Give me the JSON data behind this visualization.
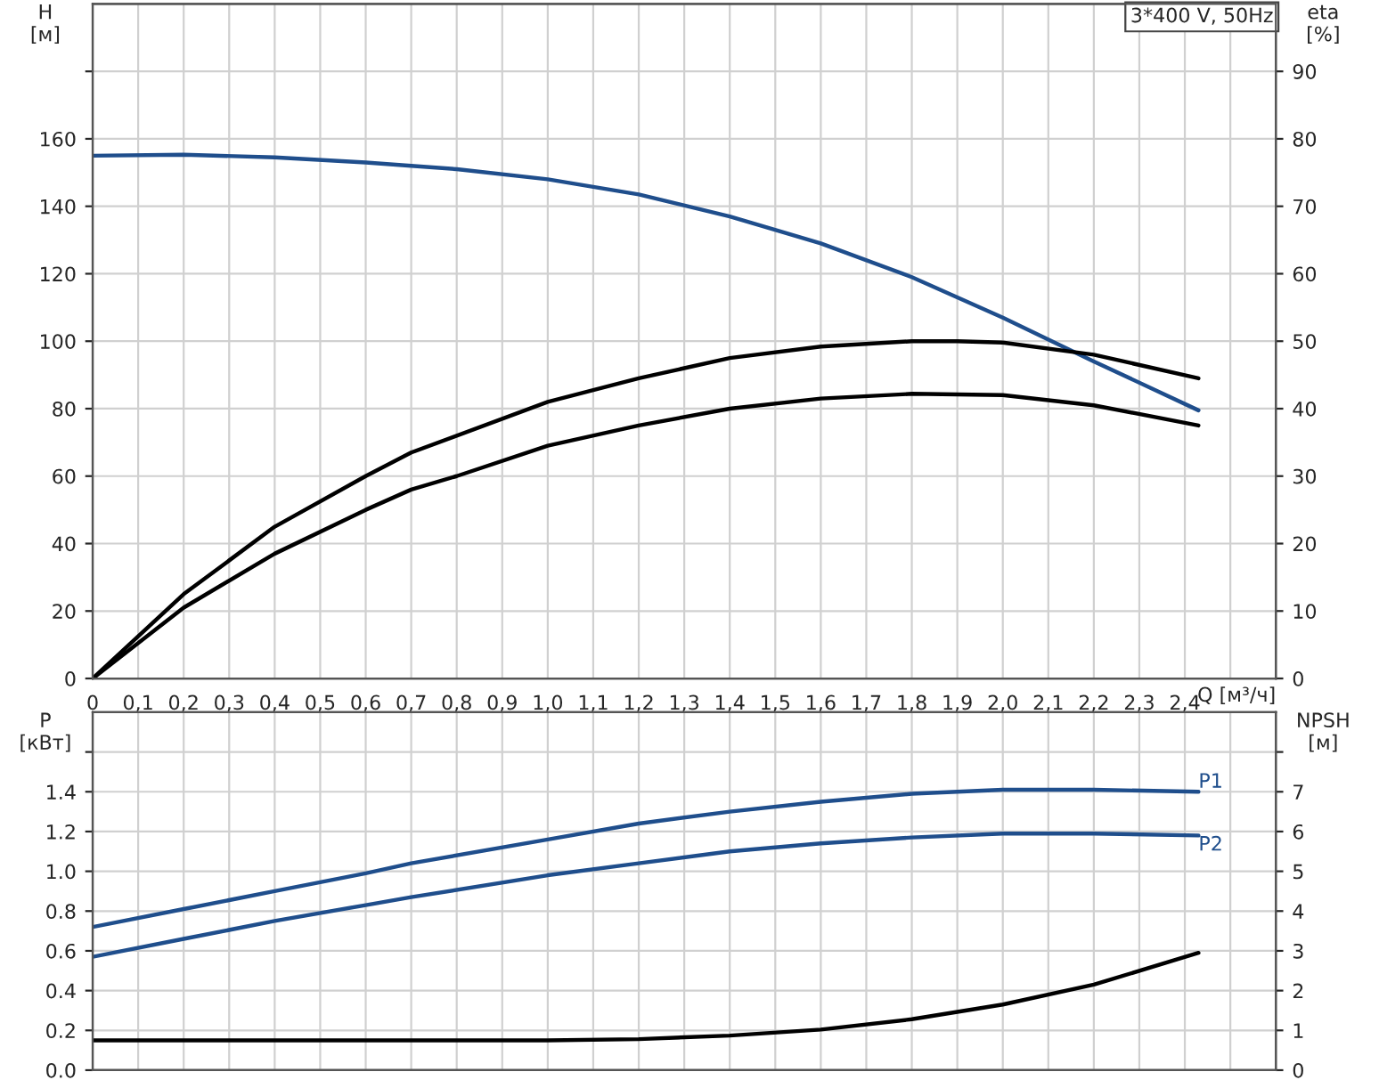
{
  "chart_data": [
    {
      "type": "line",
      "title": "3*400 V, 50Hz",
      "xlabel": "Q [м³/ч]",
      "ylabel": "H\n[м]",
      "y2label": "eta\n[%]",
      "legend": false,
      "grid": true,
      "marker": "none",
      "line_style": "solid",
      "xlim": [
        0,
        2.6
      ],
      "xticks": [
        {
          "value": 0,
          "label": "0"
        },
        {
          "value": 0.1,
          "label": "0,1"
        },
        {
          "value": 0.2,
          "label": "0,2"
        },
        {
          "value": 0.3,
          "label": "0,3"
        },
        {
          "value": 0.4,
          "label": "0,4"
        },
        {
          "value": 0.5,
          "label": "0,5"
        },
        {
          "value": 0.6,
          "label": "0,6"
        },
        {
          "value": 0.7,
          "label": "0,7"
        },
        {
          "value": 0.8,
          "label": "0,8"
        },
        {
          "value": 0.9,
          "label": "0,9"
        },
        {
          "value": 1.0,
          "label": "1,0"
        },
        {
          "value": 1.1,
          "label": "1,1"
        },
        {
          "value": 1.2,
          "label": "1,2"
        },
        {
          "value": 1.3,
          "label": "1,3"
        },
        {
          "value": 1.4,
          "label": "1,4"
        },
        {
          "value": 1.5,
          "label": "1,5"
        },
        {
          "value": 1.6,
          "label": "1,6"
        },
        {
          "value": 1.7,
          "label": "1,7"
        },
        {
          "value": 1.8,
          "label": "1,8"
        },
        {
          "value": 1.9,
          "label": "1,9"
        },
        {
          "value": 2.0,
          "label": "2,0"
        },
        {
          "value": 2.1,
          "label": "2,1"
        },
        {
          "value": 2.2,
          "label": "2,2"
        },
        {
          "value": 2.3,
          "label": "2,3"
        },
        {
          "value": 2.4,
          "label": "2,4"
        },
        {
          "value": 2.5,
          "label": null
        }
      ],
      "ylim": [
        0,
        200
      ],
      "yticks": [
        0,
        20,
        40,
        60,
        80,
        100,
        120,
        140,
        160,
        {
          "value": 180,
          "label": null
        }
      ],
      "y2lim": [
        0,
        100
      ],
      "y2ticks": [
        0,
        10,
        20,
        30,
        40,
        50,
        60,
        70,
        80,
        90
      ],
      "series": [
        {
          "color": "#1f4e8c",
          "x": [
            0,
            0.2,
            0.4,
            0.6,
            0.7,
            0.8,
            1.0,
            1.2,
            1.4,
            1.6,
            1.8,
            2.0,
            2.2,
            2.43
          ],
          "values": [
            155,
            155.3,
            154.5,
            153,
            152,
            151,
            148,
            143.5,
            137,
            129,
            119,
            107,
            94,
            79.5
          ]
        },
        {
          "color": "#000000",
          "axis": "y2",
          "x": [
            0,
            0.2,
            0.4,
            0.6,
            0.7,
            1.0,
            1.2,
            1.4,
            1.6,
            1.8,
            1.9,
            2.0,
            2.2,
            2.43
          ],
          "values": [
            0,
            12.5,
            22.5,
            30,
            33.5,
            41,
            44.5,
            47.5,
            49.2,
            50,
            50,
            49.8,
            48,
            44.5
          ]
        },
        {
          "color": "#000000",
          "axis": "y2",
          "x": [
            0,
            0.2,
            0.4,
            0.6,
            0.7,
            0.8,
            1.0,
            1.2,
            1.4,
            1.6,
            1.8,
            2.0,
            2.2,
            2.43
          ],
          "values": [
            0,
            10.5,
            18.5,
            25,
            28,
            30,
            34.5,
            37.5,
            40,
            41.5,
            42.2,
            42,
            40.5,
            37.5
          ]
        }
      ]
    },
    {
      "type": "line",
      "ylabel": "P\n[кВт]",
      "y2label": "NPSH\n[м]",
      "legend": false,
      "grid": true,
      "marker": "none",
      "line_style": "solid",
      "tick_labels": "y",
      "xlim": [
        0,
        2.6
      ],
      "xticks": [
        0,
        0.1,
        0.2,
        0.3,
        0.4,
        0.5,
        0.6,
        0.7,
        0.8,
        0.9,
        1.0,
        1.1,
        1.2,
        1.3,
        1.4,
        1.5,
        1.6,
        1.7,
        1.8,
        1.9,
        2.0,
        2.1,
        2.2,
        2.3,
        2.4,
        2.5
      ],
      "ylim": [
        0,
        1.8
      ],
      "yticks": [
        {
          "value": 0,
          "label": "0.0"
        },
        0.2,
        0.4,
        0.6,
        0.8,
        {
          "value": 1.0,
          "label": "1.0"
        },
        1.2,
        1.4,
        {
          "value": 1.6,
          "label": null
        }
      ],
      "y2lim": [
        0,
        9
      ],
      "y2ticks": [
        0,
        1,
        2,
        3,
        4,
        5,
        6,
        7,
        {
          "value": 8,
          "label": null
        }
      ],
      "series": [
        {
          "name": "P1",
          "color": "#1f4e8c",
          "x": [
            0,
            0.2,
            0.4,
            0.6,
            0.7,
            1.0,
            1.2,
            1.4,
            1.6,
            1.8,
            2.0,
            2.2,
            2.43
          ],
          "values": [
            0.72,
            0.81,
            0.9,
            0.99,
            1.04,
            1.16,
            1.24,
            1.3,
            1.35,
            1.39,
            1.41,
            1.41,
            1.4
          ]
        },
        {
          "name": "P2",
          "color": "#1f4e8c",
          "x": [
            0,
            0.2,
            0.4,
            0.6,
            0.7,
            1.0,
            1.2,
            1.4,
            1.6,
            1.8,
            2.0,
            2.2,
            2.43
          ],
          "values": [
            0.57,
            0.66,
            0.75,
            0.83,
            0.87,
            0.98,
            1.04,
            1.1,
            1.14,
            1.17,
            1.19,
            1.19,
            1.18
          ]
        },
        {
          "color": "#000000",
          "axis": "y2",
          "x": [
            0,
            0.7,
            1.0,
            1.2,
            1.4,
            1.6,
            1.8,
            2.0,
            2.2,
            2.43
          ],
          "values": [
            0.75,
            0.75,
            0.75,
            0.78,
            0.87,
            1.02,
            1.28,
            1.65,
            2.15,
            2.95
          ]
        }
      ]
    }
  ]
}
